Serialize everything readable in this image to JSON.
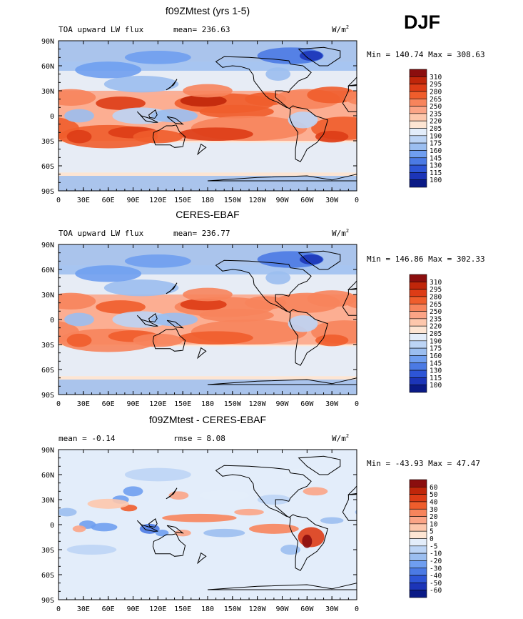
{
  "season": "DJF",
  "units_text": "W/m",
  "units_exp": "2",
  "x_ticks": [
    "0",
    "30E",
    "60E",
    "90E",
    "120E",
    "150E",
    "180",
    "150W",
    "120W",
    "90W",
    "60W",
    "30W",
    "0"
  ],
  "y_ticks": [
    "90N",
    "60N",
    "30N",
    "0",
    "30S",
    "60S",
    "90S"
  ],
  "panels": [
    {
      "title": "f09ZMtest (yrs 1-5)",
      "left": "TOA upward LW flux",
      "mean_label": "mean=",
      "mean": "236.63",
      "rmse_label": "",
      "rmse": "",
      "min_label": "Min =",
      "min": "140.74",
      "max_label": "Max =",
      "max": "308.63",
      "colorbar": "abs"
    },
    {
      "title": "CERES-EBAF",
      "left": "TOA upward LW flux",
      "mean_label": "mean=",
      "mean": "236.77",
      "rmse_label": "",
      "rmse": "",
      "min_label": "Min =",
      "min": "146.86",
      "max_label": "Max =",
      "max": "302.33",
      "colorbar": "abs"
    },
    {
      "title": "f09ZMtest - CERES-EBAF",
      "left": "",
      "mean_label": "mean =",
      "mean": "-0.14",
      "rmse_label": "rmse =",
      "rmse": "8.08",
      "min_label": "Min =",
      "min": "-43.93",
      "max_label": "Max =",
      "max": "47.47",
      "colorbar": "diff"
    }
  ],
  "colorbars": {
    "abs": {
      "labels": [
        "310",
        "295",
        "280",
        "265",
        "250",
        "235",
        "220",
        "205",
        "190",
        "175",
        "160",
        "145",
        "130",
        "115",
        "100"
      ],
      "colors": [
        "#8b0e0e",
        "#c0260a",
        "#dd3c16",
        "#ef5d2c",
        "#f7845c",
        "#fba486",
        "#fdc7ac",
        "#fde5d3",
        "#e3edfa",
        "#bcd4f5",
        "#9bbef0",
        "#6f9ef0",
        "#4b7ae4",
        "#2d55d6",
        "#1c35b8",
        "#0a1a86"
      ]
    },
    "diff": {
      "labels": [
        "60",
        "50",
        "40",
        "30",
        "20",
        "10",
        "5",
        "0",
        "-5",
        "-10",
        "-20",
        "-30",
        "-40",
        "-50",
        "-60"
      ],
      "colors": [
        "#8b0e0e",
        "#c0260a",
        "#dd3c16",
        "#ef5d2c",
        "#f7845c",
        "#fba486",
        "#fdc7ac",
        "#fde5d3",
        "#e3edfa",
        "#bcd4f5",
        "#9bbef0",
        "#6f9ef0",
        "#4b7ae4",
        "#2d55d6",
        "#1c35b8",
        "#0a1a86"
      ]
    }
  },
  "chart_data": [
    {
      "type": "heatmap",
      "title": "f09ZMtest (yrs 1-5)",
      "variable": "TOA upward LW flux",
      "units": "W/m2",
      "season": "DJF",
      "mean": 236.63,
      "min": 140.74,
      "max": 308.63,
      "xlim": [
        0,
        360
      ],
      "ylim": [
        -90,
        90
      ],
      "levels": [
        100,
        115,
        130,
        145,
        160,
        175,
        190,
        205,
        220,
        235,
        250,
        265,
        280,
        295,
        310
      ]
    },
    {
      "type": "heatmap",
      "title": "CERES-EBAF",
      "variable": "TOA upward LW flux",
      "units": "W/m2",
      "season": "DJF",
      "mean": 236.77,
      "min": 146.86,
      "max": 302.33,
      "xlim": [
        0,
        360
      ],
      "ylim": [
        -90,
        90
      ],
      "levels": [
        100,
        115,
        130,
        145,
        160,
        175,
        190,
        205,
        220,
        235,
        250,
        265,
        280,
        295,
        310
      ]
    },
    {
      "type": "heatmap",
      "title": "f09ZMtest - CERES-EBAF",
      "units": "W/m2",
      "season": "DJF",
      "mean": -0.14,
      "rmse": 8.08,
      "min": -43.93,
      "max": 47.47,
      "xlim": [
        0,
        360
      ],
      "ylim": [
        -90,
        90
      ],
      "levels": [
        -60,
        -50,
        -40,
        -30,
        -20,
        -10,
        -5,
        0,
        5,
        10,
        20,
        30,
        40,
        50,
        60
      ]
    }
  ]
}
